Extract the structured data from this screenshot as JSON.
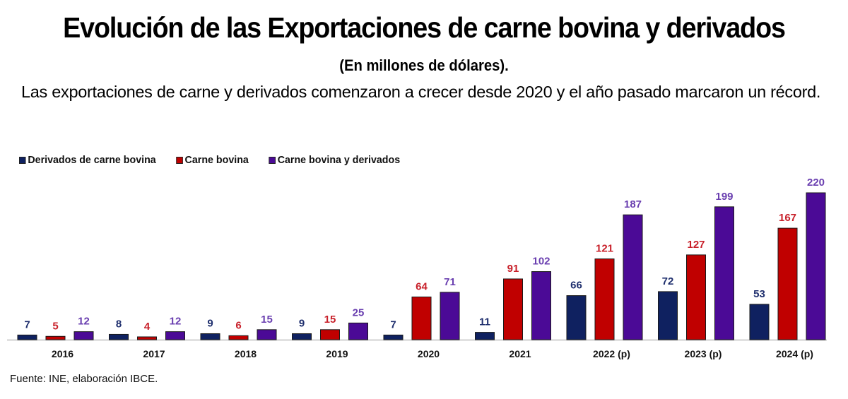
{
  "header": {
    "title": "Evolución de las Exportaciones de carne bovina y derivados",
    "subtitle": "(En millones de dólares).",
    "description": "Las exportaciones de carne y derivados comenzaron a crecer desde 2020 y el año pasado marcaron un récord."
  },
  "source": "Fuente: INE, elaboración IBCE.",
  "chart_data": {
    "type": "bar",
    "title": "Evolución de las Exportaciones de carne bovina y derivados",
    "subtitle": "(En millones de dólares).",
    "xlabel": "",
    "ylabel": "",
    "categories": [
      "2016",
      "2017",
      "2018",
      "2019",
      "2020",
      "2021",
      "2022 (p)",
      "2023 (p)",
      "2024 (p)"
    ],
    "series": [
      {
        "name": "Derivados de carne bovina",
        "color": "#0f2160",
        "label_color": "#1f2f6e",
        "values": [
          7,
          8,
          9,
          9,
          7,
          11,
          66,
          72,
          53
        ]
      },
      {
        "name": "Carne bovina",
        "color": "#c00000",
        "label_color": "#c8202a",
        "values": [
          5,
          4,
          6,
          15,
          64,
          91,
          121,
          127,
          167
        ]
      },
      {
        "name": "Carne bovina y derivados",
        "color": "#4b0a96",
        "label_color": "#6a3fb0",
        "values": [
          12,
          12,
          15,
          25,
          71,
          102,
          187,
          199,
          220
        ]
      }
    ],
    "ylim": [
      0,
      220
    ],
    "grid": false,
    "legend": "top-left",
    "data_labels": true
  }
}
